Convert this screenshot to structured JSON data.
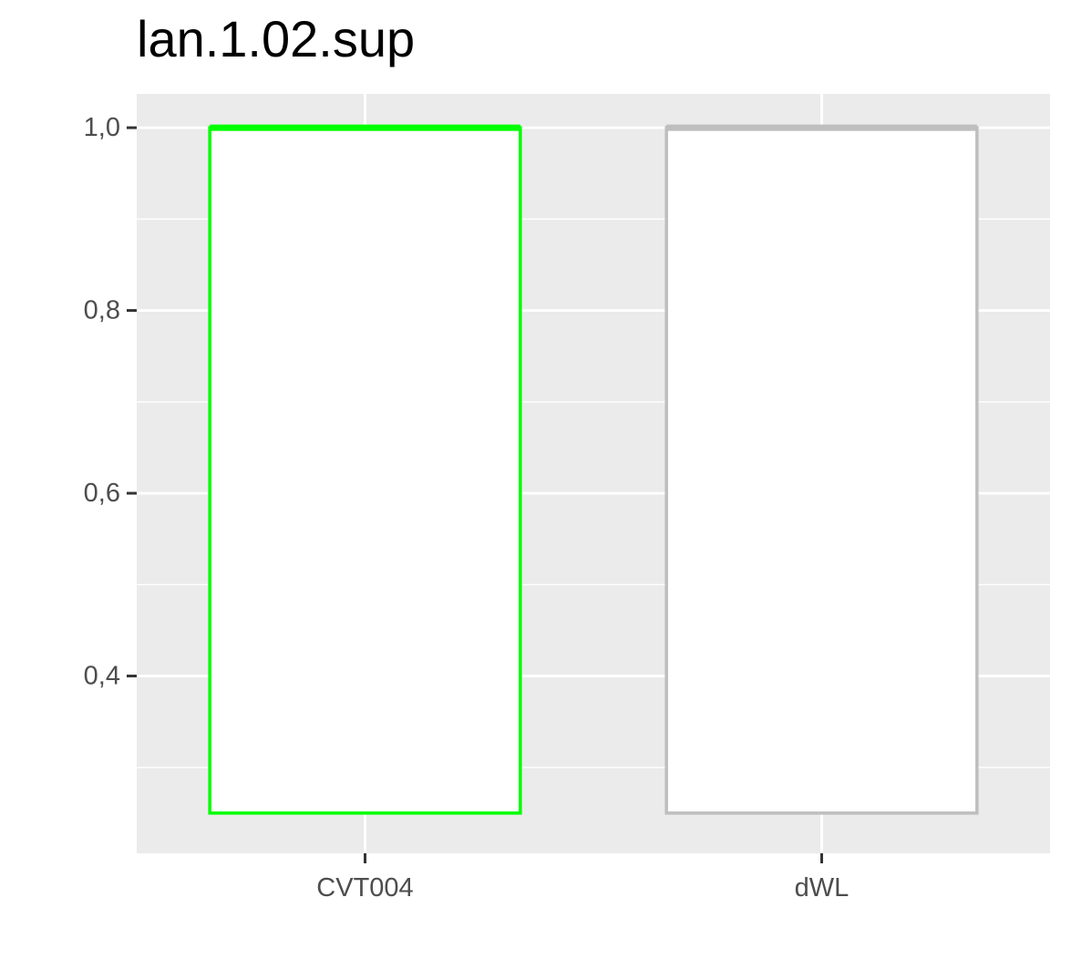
{
  "chart_data": {
    "type": "boxplot",
    "title": "lan.1.02.sup",
    "xlabel": "",
    "ylabel": "",
    "categories": [
      "CVT004",
      "dWL"
    ],
    "boxes": [
      {
        "category": "CVT004",
        "lower": 0.25,
        "q1": 0.25,
        "median": 1.0,
        "q3": 1.0,
        "upper": 1.0,
        "color": "#00ff00"
      },
      {
        "category": "dWL",
        "lower": 0.25,
        "q1": 0.25,
        "median": 1.0,
        "q3": 1.0,
        "upper": 1.0,
        "color": "#bebebe"
      }
    ],
    "ylim": [
      0.206,
      1.037
    ],
    "yticks": [
      0.4,
      0.6,
      0.8,
      1.0
    ],
    "ytick_labels": [
      "0,4",
      "0,6",
      "0,8",
      "1,0"
    ],
    "grid": true,
    "legend": "none",
    "panel_background": "#ebebeb",
    "grid_color": "#ffffff"
  }
}
